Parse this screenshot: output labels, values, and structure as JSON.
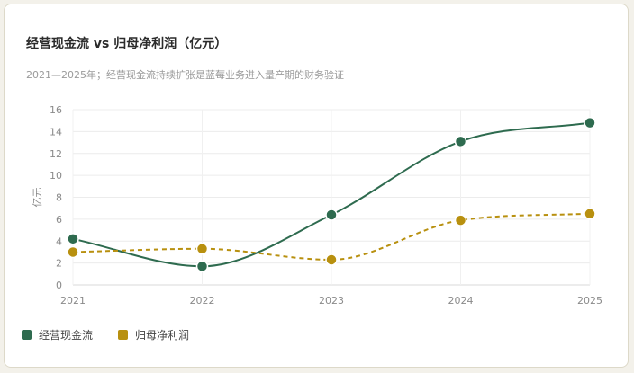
{
  "header": {
    "title": "经营现金流 vs 归母净利润（亿元）",
    "subtitle": "2021—2025年；经营现金流持续扩张是蓝莓业务进入量产期的财务验证"
  },
  "chart_data": {
    "type": "line",
    "title": "经营现金流 vs 归母净利润（亿元）",
    "subtitle": "2021—2025年；经营现金流持续扩张是蓝莓业务进入量产期的财务验证",
    "xlabel": "",
    "ylabel": "亿元",
    "categories": [
      "2021",
      "2022",
      "2023",
      "2024",
      "2025"
    ],
    "ylim": [
      0,
      16
    ],
    "yticks": [
      0,
      2,
      4,
      6,
      8,
      10,
      12,
      14,
      16
    ],
    "grid": true,
    "legend_position": "bottom-left",
    "series": [
      {
        "name": "经营现金流",
        "values": [
          4.2,
          1.7,
          6.4,
          13.1,
          14.8
        ],
        "color": "#2e6b4f",
        "style": "solid"
      },
      {
        "name": "归母净利润",
        "values": [
          3.0,
          3.3,
          2.3,
          5.9,
          6.5
        ],
        "color": "#b8900f",
        "style": "dashed"
      }
    ]
  }
}
